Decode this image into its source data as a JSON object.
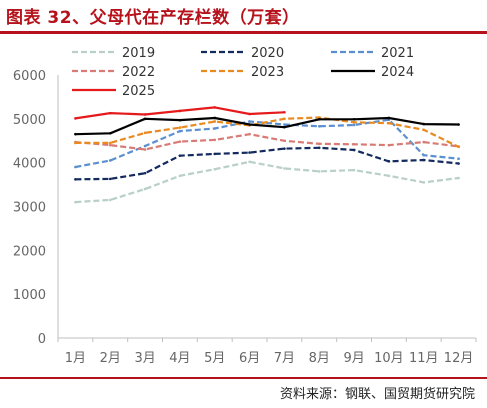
{
  "figure": {
    "title": "图表 32、父母代在产存栏数（万套）",
    "source": "资料来源：钢联、国贸期货研究院"
  },
  "chart_data": {
    "type": "line",
    "title": "",
    "xlabel": "",
    "ylabel": "",
    "categories": [
      "1月",
      "2月",
      "3月",
      "4月",
      "5月",
      "6月",
      "7月",
      "8月",
      "9月",
      "10月",
      "11月",
      "12月"
    ],
    "ylim": [
      0,
      6000
    ],
    "yticks": [
      0,
      1000,
      2000,
      3000,
      4000,
      5000,
      6000
    ],
    "grid": false,
    "legend_position": "top",
    "series": [
      {
        "name": "2019",
        "color": "#b9cfc9",
        "dash": "dashed",
        "values": [
          3100,
          3150,
          3400,
          3700,
          3850,
          4020,
          3870,
          3800,
          3830,
          3700,
          3550,
          3650
        ]
      },
      {
        "name": "2020",
        "color": "#132a5e",
        "dash": "dashed",
        "values": [
          3620,
          3630,
          3760,
          4160,
          4200,
          4230,
          4320,
          4340,
          4290,
          4030,
          4060,
          3980
        ]
      },
      {
        "name": "2021",
        "color": "#5c8fd0",
        "dash": "dashed",
        "values": [
          3900,
          4050,
          4380,
          4720,
          4780,
          4940,
          4870,
          4830,
          4860,
          4980,
          4170,
          4090
        ]
      },
      {
        "name": "2022",
        "color": "#d77b74",
        "dash": "dashed",
        "values": [
          4470,
          4400,
          4300,
          4480,
          4520,
          4650,
          4500,
          4430,
          4420,
          4400,
          4470,
          4370
        ]
      },
      {
        "name": "2023",
        "color": "#e88a1f",
        "dash": "dashed",
        "values": [
          4450,
          4450,
          4680,
          4800,
          4940,
          4850,
          5000,
          5030,
          4920,
          4900,
          4750,
          4360
        ]
      },
      {
        "name": "2024",
        "color": "#000000",
        "dash": "solid",
        "values": [
          4650,
          4670,
          5000,
          4970,
          5020,
          4870,
          4810,
          4990,
          4990,
          5020,
          4880,
          4870
        ]
      },
      {
        "name": "2025",
        "color": "#e41a1c",
        "dash": "solid",
        "values": [
          5010,
          5130,
          5100,
          5180,
          5260,
          5110,
          5150,
          null,
          null,
          null,
          null,
          null
        ]
      }
    ]
  }
}
